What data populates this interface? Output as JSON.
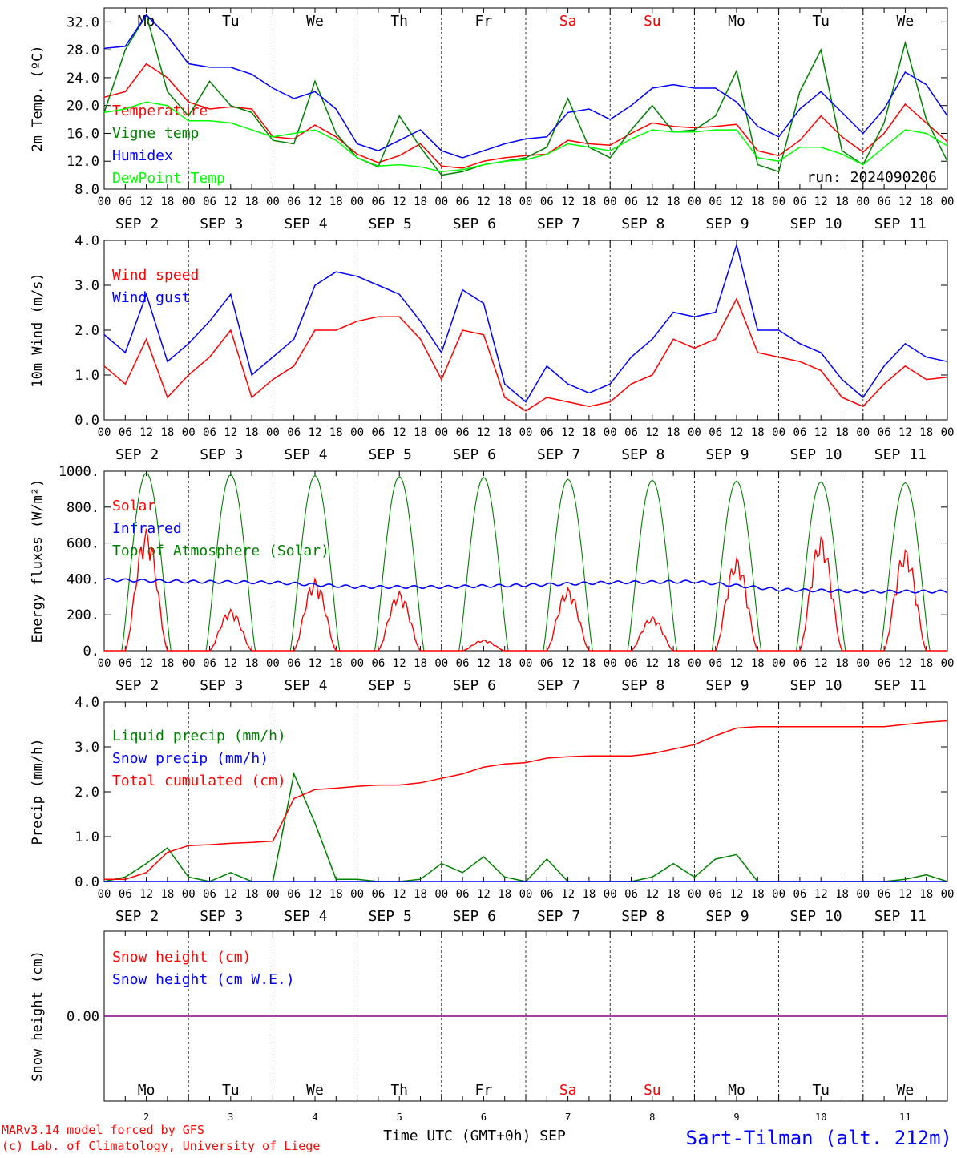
{
  "footer": {
    "model": "MARv3.14 model forced by GFS",
    "copyright": "(c) Lab. of Climatology, University of Liege",
    "xlabel": "Time UTC (GMT+0h) SEP",
    "station": "Sart-Tilman (alt. 212m)"
  },
  "colors": {
    "red": "#ff0000",
    "green": "#008000",
    "blue": "#0000ff",
    "lime": "#00ff00",
    "purple": "#800080",
    "weekend": "#ff0000",
    "text": "#000000"
  },
  "hour_ticks": [
    "00",
    "06",
    "12",
    "18"
  ],
  "date_labels": [
    "SEP  2",
    "SEP  3",
    "SEP  4",
    "SEP  5",
    "SEP  6",
    "SEP  7",
    "SEP  8",
    "SEP  9",
    "SEP 10",
    "SEP 11"
  ],
  "day_names": [
    "Mo",
    "Tu",
    "We",
    "Th",
    "Fr",
    "Sa",
    "Su",
    "Mo",
    "Tu",
    "We"
  ],
  "weekend_days": [
    "Sa",
    "Su"
  ],
  "day_numbers": [
    "2",
    "3",
    "4",
    "5",
    "6",
    "7",
    "8",
    "9",
    "10",
    "11"
  ],
  "chart_data": [
    {
      "type": "line",
      "ylabel": "2m Temp. (ºC)",
      "ylim": [
        8,
        34
      ],
      "yticks": [
        "8.0",
        "12.0",
        "16.0",
        "20.0",
        "24.0",
        "28.0",
        "32.0"
      ],
      "ytick_values": [
        8,
        12,
        16,
        20,
        24,
        28,
        32
      ],
      "annotation": "run: 2024090206",
      "x_hours": [
        0,
        6,
        12,
        18,
        24,
        30,
        36,
        42,
        48,
        54,
        60,
        66,
        72,
        78,
        84,
        90,
        96,
        102,
        108,
        114,
        120,
        126,
        132,
        138,
        144,
        150,
        156,
        162,
        168,
        174,
        180,
        186,
        192,
        198,
        204,
        210,
        216,
        222,
        228,
        234,
        240
      ],
      "series": [
        {
          "name": "Temperature",
          "color": "#ff0000",
          "values": [
            21.2,
            22.0,
            26.0,
            24.0,
            20.5,
            19.5,
            19.8,
            19.5,
            15.5,
            15.2,
            17.2,
            15.5,
            13.0,
            11.8,
            12.8,
            14.5,
            11.3,
            11.0,
            12.0,
            12.5,
            12.8,
            13.0,
            15.0,
            14.5,
            14.3,
            16.0,
            17.5,
            17.0,
            16.8,
            17.0,
            17.3,
            13.5,
            12.8,
            15.0,
            18.5,
            15.5,
            13.3,
            16.0,
            20.2,
            17.5,
            14.8
          ]
        },
        {
          "name": "Vigne temp",
          "color": "#008000",
          "values": [
            19.0,
            28.0,
            33.0,
            22.0,
            18.5,
            23.5,
            20.0,
            19.0,
            15.0,
            14.5,
            23.5,
            16.0,
            12.5,
            11.2,
            18.5,
            14.0,
            10.0,
            10.5,
            11.5,
            12.0,
            12.5,
            14.0,
            21.0,
            14.0,
            12.5,
            16.5,
            20.0,
            16.2,
            16.5,
            18.5,
            25.0,
            11.5,
            10.5,
            22.0,
            28.0,
            13.5,
            11.5,
            17.5,
            29.0,
            18.0,
            12.0
          ]
        },
        {
          "name": "Humidex",
          "color": "#0000ff",
          "values": [
            28.2,
            28.5,
            33.0,
            30.0,
            26.0,
            25.5,
            25.5,
            24.5,
            22.5,
            21.0,
            22.0,
            19.5,
            14.5,
            13.5,
            15.0,
            16.5,
            13.5,
            12.5,
            13.5,
            14.5,
            15.2,
            15.5,
            19.0,
            19.5,
            18.0,
            20.0,
            22.5,
            23.0,
            22.5,
            22.5,
            20.5,
            17.0,
            15.5,
            19.5,
            22.0,
            19.0,
            16.0,
            19.5,
            24.8,
            23.0,
            18.5
          ]
        },
        {
          "name": "DewPoint Temp",
          "color": "#00ff00",
          "values": [
            19.0,
            19.5,
            20.5,
            20.0,
            17.8,
            17.8,
            17.5,
            16.5,
            15.5,
            16.0,
            16.5,
            15.0,
            12.5,
            11.3,
            11.5,
            11.2,
            10.5,
            10.8,
            11.5,
            12.0,
            12.2,
            13.0,
            14.5,
            14.0,
            13.5,
            15.2,
            16.5,
            16.2,
            16.2,
            16.5,
            16.5,
            12.5,
            12.0,
            14.0,
            14.0,
            13.0,
            11.5,
            14.0,
            16.5,
            16.0,
            14.2
          ]
        }
      ]
    },
    {
      "type": "line",
      "ylabel": "10m Wind (m/s)",
      "ylim": [
        0,
        4
      ],
      "yticks": [
        "0.0",
        "1.0",
        "2.0",
        "3.0",
        "4.0"
      ],
      "ytick_values": [
        0,
        1,
        2,
        3,
        4
      ],
      "x_hours": [
        0,
        6,
        12,
        18,
        24,
        30,
        36,
        42,
        48,
        54,
        60,
        66,
        72,
        78,
        84,
        90,
        96,
        102,
        108,
        114,
        120,
        126,
        132,
        138,
        144,
        150,
        156,
        162,
        168,
        174,
        180,
        186,
        192,
        198,
        204,
        210,
        216,
        222,
        228,
        234,
        240
      ],
      "series": [
        {
          "name": "Wind speed",
          "color": "#ff0000",
          "values": [
            1.2,
            0.8,
            1.8,
            0.5,
            1.0,
            1.4,
            2.0,
            0.5,
            0.9,
            1.2,
            2.0,
            2.0,
            2.2,
            2.3,
            2.3,
            1.8,
            0.9,
            2.0,
            1.9,
            0.5,
            0.2,
            0.5,
            0.4,
            0.3,
            0.4,
            0.8,
            1.0,
            1.8,
            1.6,
            1.8,
            2.7,
            1.5,
            1.4,
            1.3,
            1.1,
            0.5,
            0.3,
            0.8,
            1.2,
            0.9,
            0.95
          ]
        },
        {
          "name": "Wind gust",
          "color": "#0000ff",
          "values": [
            1.9,
            1.5,
            2.8,
            1.3,
            1.7,
            2.2,
            2.8,
            1.0,
            1.4,
            1.8,
            3.0,
            3.3,
            3.2,
            3.0,
            2.8,
            2.2,
            1.5,
            2.9,
            2.6,
            0.8,
            0.4,
            1.2,
            0.8,
            0.6,
            0.8,
            1.4,
            1.8,
            2.4,
            2.3,
            2.4,
            3.9,
            2.0,
            2.0,
            1.7,
            1.5,
            0.9,
            0.5,
            1.2,
            1.7,
            1.4,
            1.3
          ]
        }
      ]
    },
    {
      "type": "line",
      "ylabel": "Energy fluxes (W/m²)",
      "ylim": [
        0,
        1000
      ],
      "yticks": [
        "0.",
        "200.",
        "400.",
        "600.",
        "800.",
        "1000."
      ],
      "ytick_values": [
        0,
        200,
        400,
        600,
        800,
        1000
      ],
      "day_peaks": [
        {
          "toa": 990,
          "solar": 680,
          "infrared": 395
        },
        {
          "toa": 980,
          "solar": 230,
          "infrared": 385
        },
        {
          "toa": 975,
          "solar": 400,
          "infrared": 380
        },
        {
          "toa": 970,
          "solar": 330,
          "infrared": 355
        },
        {
          "toa": 965,
          "solar": 60,
          "infrared": 355
        },
        {
          "toa": 955,
          "solar": 350,
          "infrared": 365
        },
        {
          "toa": 950,
          "solar": 190,
          "infrared": 380
        },
        {
          "toa": 945,
          "solar": 520,
          "infrared": 385
        },
        {
          "toa": 940,
          "solar": 640,
          "infrared": 340
        },
        {
          "toa": 935,
          "solar": 570,
          "infrared": 330
        }
      ],
      "series": [
        {
          "name": "Solar",
          "color": "#ff0000"
        },
        {
          "name": "Infrared",
          "color": "#0000ff"
        },
        {
          "name": "Top of Atmosphere (Solar)",
          "color": "#008000"
        }
      ]
    },
    {
      "type": "line",
      "ylabel": "Precip (mm/h)",
      "ylim": [
        0,
        4
      ],
      "yticks": [
        "0.0",
        "1.0",
        "2.0",
        "3.0",
        "4.0"
      ],
      "ytick_values": [
        0,
        1,
        2,
        3,
        4
      ],
      "x_hours": [
        0,
        6,
        12,
        18,
        24,
        30,
        36,
        42,
        48,
        54,
        60,
        66,
        72,
        78,
        84,
        90,
        96,
        102,
        108,
        114,
        120,
        126,
        132,
        138,
        144,
        150,
        156,
        162,
        168,
        174,
        180,
        186,
        192,
        198,
        204,
        210,
        216,
        222,
        228,
        234,
        240
      ],
      "series": [
        {
          "name": "Liquid precip (mm/h)",
          "color": "#008000",
          "values": [
            0.0,
            0.1,
            0.4,
            0.75,
            0.1,
            0.0,
            0.2,
            0.0,
            0.0,
            2.4,
            1.3,
            0.05,
            0.05,
            0.0,
            0.0,
            0.05,
            0.4,
            0.2,
            0.55,
            0.1,
            0.0,
            0.5,
            0.0,
            0.0,
            0.0,
            0.0,
            0.1,
            0.4,
            0.1,
            0.5,
            0.6,
            0.0,
            0.0,
            0.0,
            0.0,
            0.0,
            0.0,
            0.0,
            0.05,
            0.15,
            0.0
          ]
        },
        {
          "name": "Snow precip (mm/h)",
          "color": "#0000ff",
          "values": [
            0,
            0,
            0,
            0,
            0,
            0,
            0,
            0,
            0,
            0,
            0,
            0,
            0,
            0,
            0,
            0,
            0,
            0,
            0,
            0,
            0,
            0,
            0,
            0,
            0,
            0,
            0,
            0,
            0,
            0,
            0,
            0,
            0,
            0,
            0,
            0,
            0,
            0,
            0,
            0,
            0
          ]
        },
        {
          "name": "Total cumulated (cm)",
          "color": "#ff0000",
          "values": [
            0.05,
            0.05,
            0.2,
            0.65,
            0.8,
            0.82,
            0.85,
            0.87,
            0.9,
            1.85,
            2.05,
            2.08,
            2.12,
            2.15,
            2.15,
            2.2,
            2.3,
            2.4,
            2.55,
            2.62,
            2.65,
            2.75,
            2.78,
            2.8,
            2.8,
            2.8,
            2.85,
            2.95,
            3.05,
            3.25,
            3.42,
            3.45,
            3.45,
            3.45,
            3.45,
            3.45,
            3.45,
            3.45,
            3.5,
            3.55,
            3.58
          ]
        }
      ]
    },
    {
      "type": "line",
      "ylabel": "Snow height (cm)",
      "ylim": [
        -1,
        1
      ],
      "yticks": [
        "0.00"
      ],
      "ytick_values": [
        0
      ],
      "series": [
        {
          "name": "Snow height (cm)",
          "color": "#ff0000",
          "values": [
            0,
            0
          ]
        },
        {
          "name": "Snow height (cm W.E.)",
          "color": "#0000ff",
          "values": [
            0,
            0
          ]
        }
      ]
    }
  ]
}
